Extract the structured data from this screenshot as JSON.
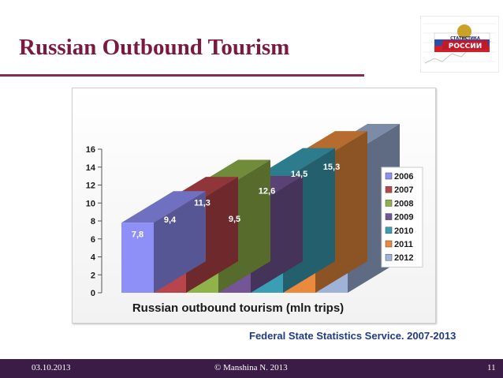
{
  "slide": {
    "title": "Russian Outbound Tourism",
    "source_note": "Federal State Statistics Service. 2007-2013",
    "footer_date": "03.10.2013",
    "footer_author": "© Manshina N. 2013",
    "page_number": "11"
  },
  "logo": {
    "text": "СТАТИСТИКА РОССИИ",
    "description_icon": "rosstat-logo"
  },
  "chart_data": {
    "type": "bar",
    "style": "3d-stepped",
    "xlabel": "Russian outbound tourism (mln trips)",
    "ylabel": "",
    "ylim": [
      0,
      16
    ],
    "yticks": [
      0,
      2,
      4,
      6,
      8,
      10,
      12,
      14,
      16
    ],
    "categories": [
      "2006",
      "2007",
      "2008",
      "2009",
      "2010",
      "2011",
      "2012"
    ],
    "values": [
      7.8,
      9.4,
      11.3,
      9.5,
      12.6,
      14.5,
      15.3
    ],
    "value_labels": [
      "7,8",
      "9,4",
      "11,3",
      "9,5",
      "12,6",
      "14,5",
      "15,3"
    ],
    "colors": [
      "#8f8ff8",
      "#b8454b",
      "#8fb24a",
      "#745596",
      "#3a9fb5",
      "#ea8a3c",
      "#9fb3d8"
    ],
    "grid": false,
    "legend_position": "right"
  }
}
